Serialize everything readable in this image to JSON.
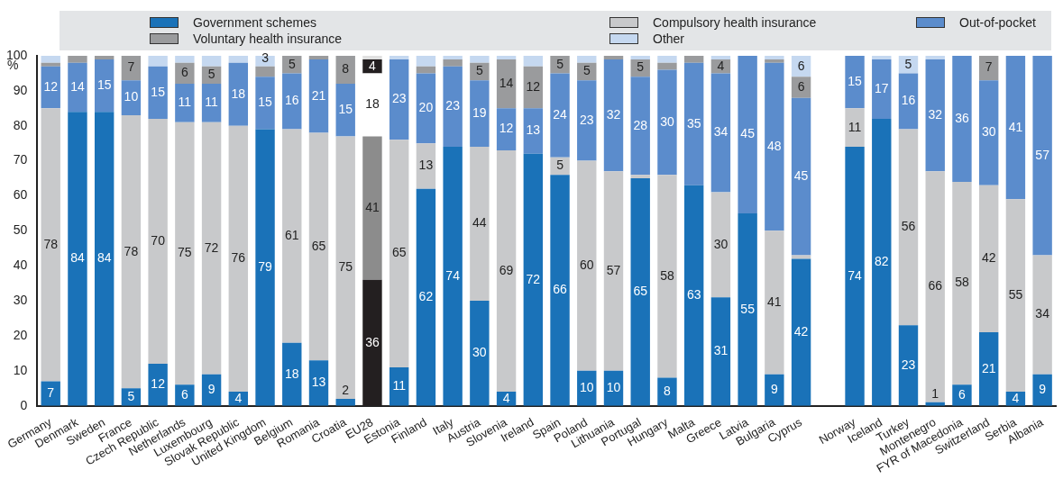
{
  "chart_data": {
    "type": "bar",
    "stacked": true,
    "ylabel": "%",
    "legend": "top",
    "categories": [
      "Germany",
      "Denmark",
      "Sweden",
      "France",
      "Czech Republic",
      "Netherlands",
      "Luxembourg",
      "Slovak Republic",
      "United Kingdom",
      "Belgium",
      "Romania",
      "Croatia",
      "EU28",
      "Estonia",
      "Finland",
      "Italy",
      "Austria",
      "Slovenia",
      "Ireland",
      "Spain",
      "Poland",
      "Lithuania",
      "Portugal",
      "Hungary",
      "Malta",
      "Greece",
      "Latvia",
      "Bulgaria",
      "Cyprus",
      null,
      "Norway",
      "Iceland",
      "Turkey",
      "Montenegro",
      "FYR of Macedonia",
      "Switzerland",
      "Serbia",
      "Albania"
    ],
    "ylim": [
      0,
      100
    ],
    "yticks": [
      0,
      10,
      20,
      30,
      40,
      50,
      60,
      70,
      80,
      90,
      100
    ],
    "series": [
      {
        "name": "Government schemes",
        "color": "#1a72b8",
        "colors": [
          "#1a72b8",
          "#1a72b8",
          "#1a72b8",
          "#1a72b8",
          "#1a72b8",
          "#1a72b8",
          "#1a72b8",
          "#1a72b8",
          "#1a72b8",
          "#1a72b8",
          "#1a72b8",
          "#1a72b8",
          "#231f20",
          "#1a72b8",
          "#1a72b8",
          "#1a72b8",
          "#1a72b8",
          "#1a72b8",
          "#1a72b8",
          "#1a72b8",
          "#1a72b8",
          "#1a72b8",
          "#1a72b8",
          "#1a72b8",
          "#1a72b8",
          "#1a72b8",
          "#1a72b8",
          "#1a72b8",
          "#1a72b8",
          "#1a72b8",
          "#1a72b8",
          "#1a72b8",
          "#1a72b8",
          "#1a72b8",
          "#1a72b8",
          "#1a72b8",
          "#1a72b8",
          "#1a72b8"
        ],
        "values": [
          7,
          84,
          84,
          5,
          12,
          6,
          9,
          4,
          79,
          18,
          13,
          2,
          36,
          11,
          62,
          74,
          30,
          4,
          72,
          66,
          10,
          10,
          65,
          8,
          63,
          31,
          55,
          9,
          42,
          null,
          74,
          82,
          23,
          1,
          6,
          21,
          4,
          9
        ],
        "value_labels": [
          "7",
          "84",
          "84",
          "5",
          "12",
          "6",
          "9",
          "4",
          "79",
          "18",
          "13",
          "2",
          "36",
          "11",
          "62",
          "74",
          "30",
          "4",
          "72",
          "66",
          "10",
          "10",
          "65",
          "8",
          "63",
          "31",
          "55",
          "9",
          "42",
          null,
          "74",
          "82",
          "23",
          "1",
          "6",
          "21",
          "4",
          "9"
        ]
      },
      {
        "name": "Compulsory health insurance",
        "color": "#c8c9cb",
        "colors": [
          "#c8c9cb",
          "#c8c9cb",
          "#c8c9cb",
          "#c8c9cb",
          "#c8c9cb",
          "#c8c9cb",
          "#c8c9cb",
          "#c8c9cb",
          "#c8c9cb",
          "#c8c9cb",
          "#c8c9cb",
          "#c8c9cb",
          "#8c8c8c",
          "#c8c9cb",
          "#c8c9cb",
          "#c8c9cb",
          "#c8c9cb",
          "#c8c9cb",
          "#c8c9cb",
          "#c8c9cb",
          "#c8c9cb",
          "#c8c9cb",
          "#c8c9cb",
          "#c8c9cb",
          "#c8c9cb",
          "#c8c9cb",
          "#c8c9cb",
          "#c8c9cb",
          "#c8c9cb",
          "#c8c9cb",
          "#c8c9cb",
          "#c8c9cb",
          "#c8c9cb",
          "#c8c9cb",
          "#c8c9cb",
          "#c8c9cb",
          "#c8c9cb",
          "#c8c9cb"
        ],
        "values": [
          78,
          0,
          0,
          78,
          70,
          75,
          72,
          76,
          0,
          61,
          65,
          75,
          41,
          65,
          13,
          0,
          44,
          69,
          0,
          5,
          60,
          57,
          1,
          58,
          0,
          30,
          0,
          41,
          1,
          null,
          11,
          0,
          56,
          66,
          58,
          42,
          55,
          34
        ],
        "value_labels": [
          "78",
          null,
          null,
          "78",
          "70",
          "75",
          "72",
          "76",
          null,
          "61",
          "65",
          "75",
          "41",
          "65",
          "13",
          null,
          "44",
          "69",
          null,
          "5",
          "60",
          "57",
          null,
          "58",
          null,
          "30",
          null,
          "41",
          null,
          null,
          "11",
          null,
          "56",
          "66",
          "58",
          "42",
          "55",
          "34"
        ]
      },
      {
        "name": "Out-of-pocket",
        "color": "#5b8ccc",
        "colors": [
          "#5b8ccc",
          "#5b8ccc",
          "#5b8ccc",
          "#5b8ccc",
          "#5b8ccc",
          "#5b8ccc",
          "#5b8ccc",
          "#5b8ccc",
          "#5b8ccc",
          "#5b8ccc",
          "#5b8ccc",
          "#5b8ccc",
          "#ffffff",
          "#5b8ccc",
          "#5b8ccc",
          "#5b8ccc",
          "#5b8ccc",
          "#5b8ccc",
          "#5b8ccc",
          "#5b8ccc",
          "#5b8ccc",
          "#5b8ccc",
          "#5b8ccc",
          "#5b8ccc",
          "#5b8ccc",
          "#5b8ccc",
          "#5b8ccc",
          "#5b8ccc",
          "#5b8ccc",
          "#5b8ccc",
          "#5b8ccc",
          "#5b8ccc",
          "#5b8ccc",
          "#5b8ccc",
          "#5b8ccc",
          "#5b8ccc",
          "#5b8ccc",
          "#5b8ccc"
        ],
        "values": [
          12,
          14,
          15,
          10,
          15,
          11,
          11,
          18,
          15,
          16,
          21,
          15,
          18,
          23,
          20,
          23,
          19,
          12,
          13,
          24,
          23,
          32,
          28,
          30,
          35,
          34,
          45,
          48,
          45,
          null,
          15,
          17,
          16,
          32,
          36,
          30,
          41,
          57
        ],
        "value_labels": [
          "12",
          "14",
          "15",
          "10",
          "15",
          "11",
          "11",
          "18",
          "15",
          "16",
          "21",
          "15",
          "18",
          "23",
          "20",
          "23",
          "19",
          "12",
          "13",
          "24",
          "23",
          "32",
          "28",
          "30",
          "35",
          "34",
          "45",
          "48",
          "45",
          null,
          "15",
          "17",
          "16",
          "32",
          "36",
          "30",
          "41",
          "57"
        ]
      },
      {
        "name": "Voluntary health insurance",
        "color": "#9a9b9d",
        "colors": [
          "#9a9b9d",
          "#9a9b9d",
          "#9a9b9d",
          "#9a9b9d",
          "#9a9b9d",
          "#9a9b9d",
          "#9a9b9d",
          "#9a9b9d",
          "#9a9b9d",
          "#9a9b9d",
          "#9a9b9d",
          "#9a9b9d",
          "#231f20",
          "#9a9b9d",
          "#9a9b9d",
          "#9a9b9d",
          "#9a9b9d",
          "#9a9b9d",
          "#9a9b9d",
          "#9a9b9d",
          "#9a9b9d",
          "#9a9b9d",
          "#9a9b9d",
          "#9a9b9d",
          "#9a9b9d",
          "#9a9b9d",
          "#9a9b9d",
          "#9a9b9d",
          "#9a9b9d",
          "#9a9b9d",
          "#9a9b9d",
          "#9a9b9d",
          "#9a9b9d",
          "#9a9b9d",
          "#9a9b9d",
          "#9a9b9d",
          "#9a9b9d",
          "#9a9b9d"
        ],
        "values": [
          1,
          2,
          1,
          7,
          0,
          6,
          5,
          0,
          3,
          5,
          1,
          8,
          4,
          0,
          2,
          2,
          5,
          14,
          12,
          5,
          5,
          1,
          5,
          2,
          2,
          4,
          0,
          1,
          6,
          null,
          0,
          0,
          0,
          0,
          0,
          7,
          0,
          0
        ],
        "value_labels": [
          null,
          null,
          null,
          "7",
          null,
          "6",
          "5",
          null,
          "3",
          "5",
          null,
          "8",
          "4",
          null,
          null,
          null,
          "5",
          "14",
          "12",
          "5",
          "5",
          null,
          "5",
          null,
          null,
          "4",
          null,
          null,
          "6",
          null,
          null,
          null,
          null,
          null,
          null,
          "7",
          null,
          null
        ]
      },
      {
        "name": "Other",
        "color": "#c5d8f0",
        "colors": [
          "#c5d8f0",
          "#c5d8f0",
          "#c5d8f0",
          "#c5d8f0",
          "#c5d8f0",
          "#c5d8f0",
          "#c5d8f0",
          "#c5d8f0",
          "#c5d8f0",
          "#c5d8f0",
          "#c5d8f0",
          "#c5d8f0",
          "#e0e0e0",
          "#c5d8f0",
          "#c5d8f0",
          "#c5d8f0",
          "#c5d8f0",
          "#c5d8f0",
          "#c5d8f0",
          "#c5d8f0",
          "#c5d8f0",
          "#c5d8f0",
          "#c5d8f0",
          "#c5d8f0",
          "#c5d8f0",
          "#c5d8f0",
          "#c5d8f0",
          "#c5d8f0",
          "#c5d8f0",
          "#c5d8f0",
          "#c5d8f0",
          "#c5d8f0",
          "#c5d8f0",
          "#c5d8f0",
          "#c5d8f0",
          "#c5d8f0",
          "#c5d8f0",
          "#c5d8f0"
        ],
        "values": [
          2,
          0,
          0,
          0,
          3,
          2,
          3,
          2,
          3,
          0,
          0,
          0,
          1,
          1,
          3,
          1,
          2,
          1,
          3,
          0,
          2,
          0,
          1,
          2,
          0,
          1,
          0,
          1,
          6,
          null,
          0,
          1,
          5,
          1,
          0,
          0,
          0,
          0
        ],
        "value_labels": [
          null,
          null,
          null,
          null,
          null,
          null,
          null,
          null,
          null,
          null,
          null,
          null,
          null,
          null,
          null,
          null,
          null,
          null,
          null,
          null,
          null,
          null,
          null,
          null,
          null,
          null,
          null,
          null,
          "6",
          null,
          null,
          null,
          "5",
          null,
          null,
          null,
          null,
          null
        ]
      }
    ]
  }
}
